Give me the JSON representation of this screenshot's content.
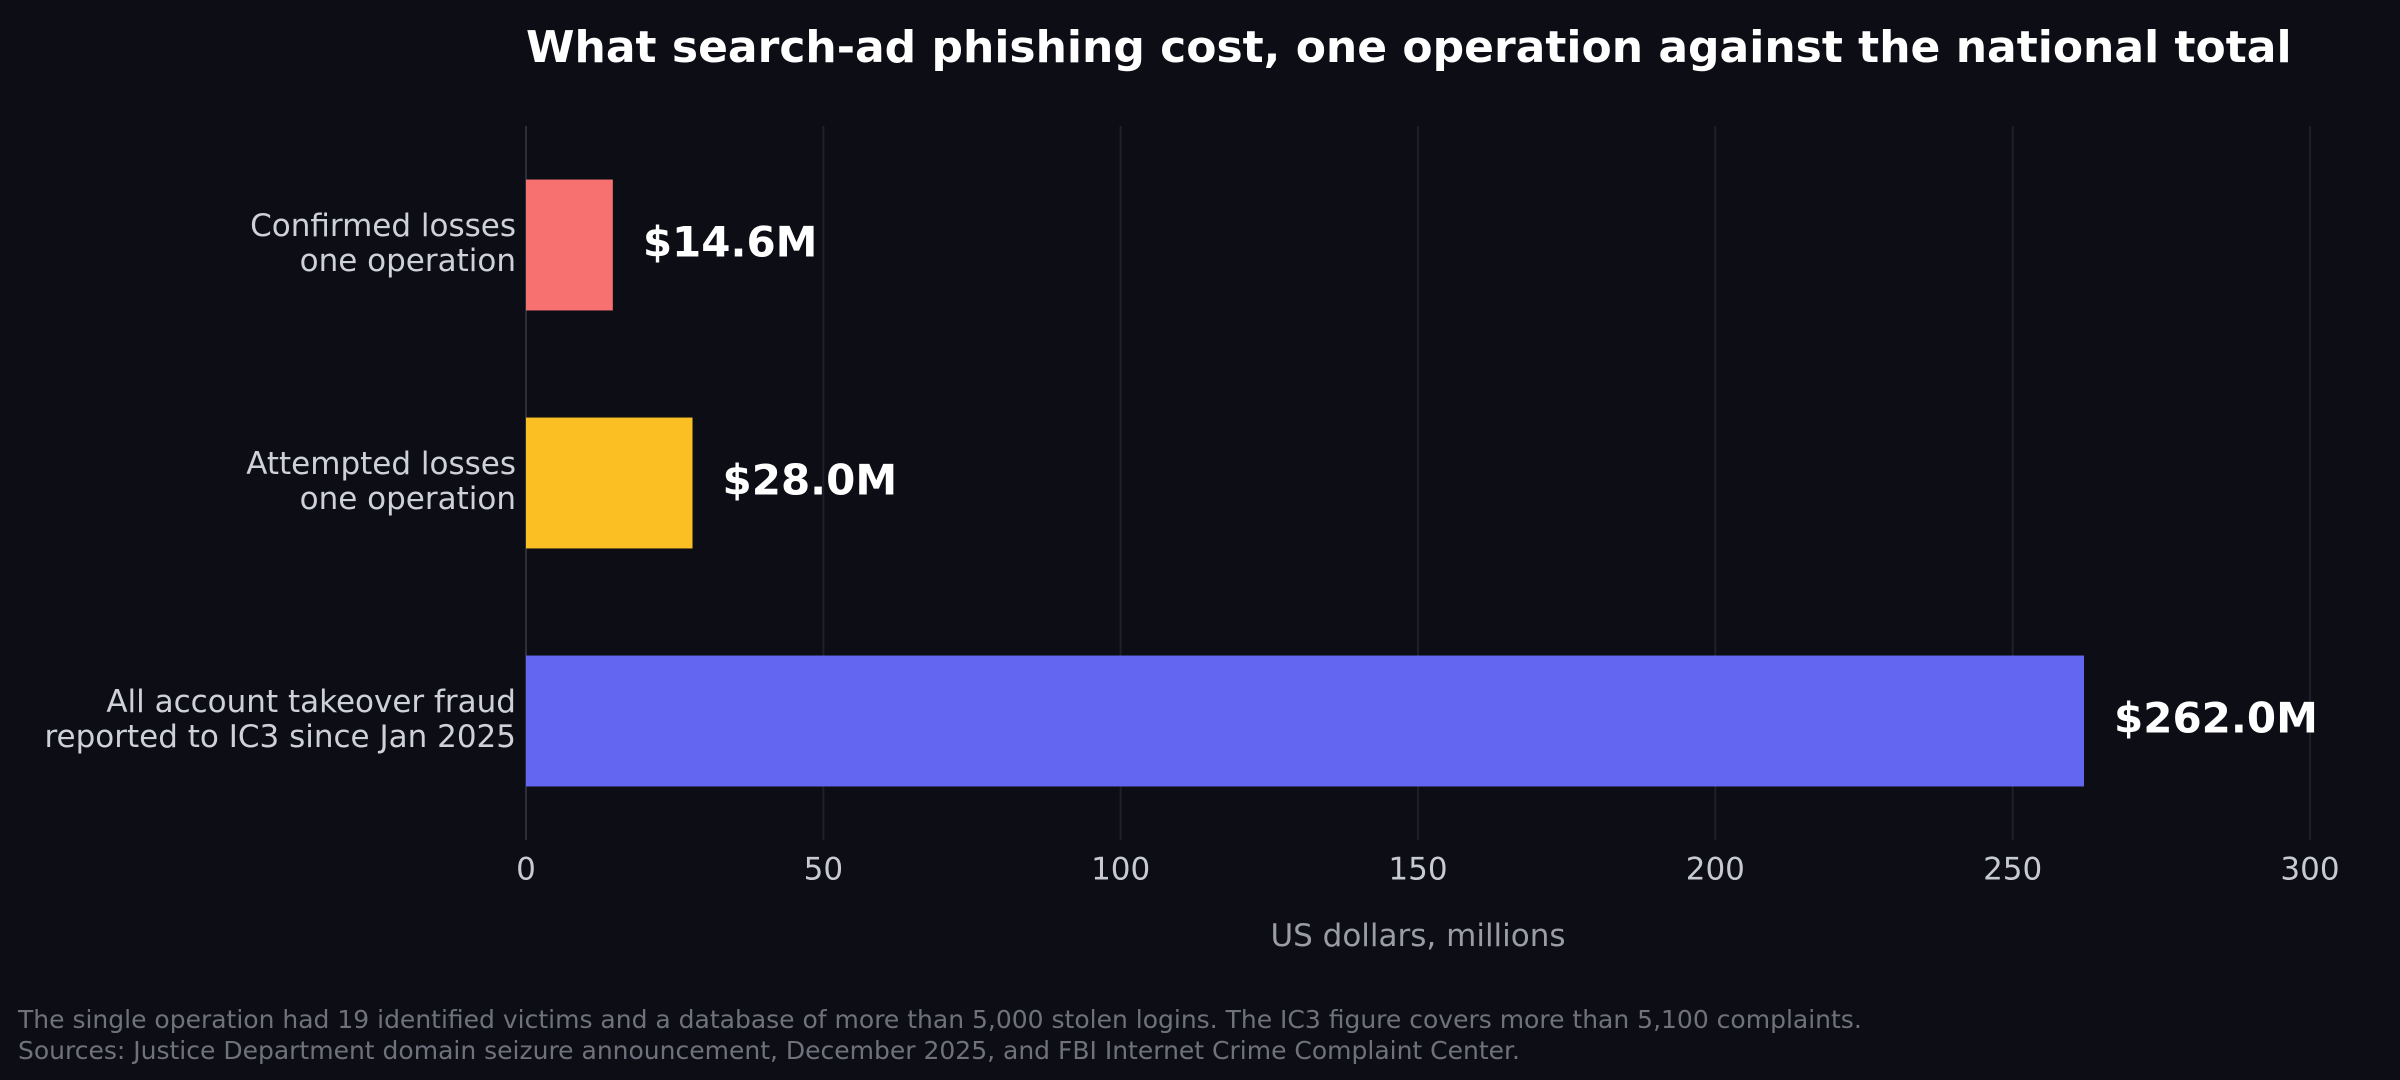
{
  "chart_data": {
    "type": "bar",
    "orientation": "horizontal",
    "title": "What search-ad phishing cost, one operation against the national total",
    "xlabel": "US dollars, millions",
    "ylabel": "",
    "xlim": [
      0,
      300
    ],
    "xticks": [
      0,
      50,
      100,
      150,
      200,
      250,
      300
    ],
    "grid": "vertical",
    "categories": [
      [
        "Confirmed losses",
        "one operation"
      ],
      [
        "Attempted losses",
        "one operation"
      ],
      [
        "All account takeover fraud",
        "reported to IC3 since Jan 2025"
      ]
    ],
    "values": [
      14.6,
      28.0,
      262.0
    ],
    "value_labels": [
      "$14.6M",
      "$28.0M",
      "$262.0M"
    ],
    "colors": [
      "#f87171",
      "#fbbf24",
      "#6366f1"
    ]
  },
  "footnotes": [
    "The single operation had 19 identified victims and a database of more than 5,000 stolen logins. The IC3 figure covers more than 5,100 complaints.",
    "Sources: Justice Department domain seizure announcement, December 2025, and FBI Internet Crime Complaint Center."
  ]
}
